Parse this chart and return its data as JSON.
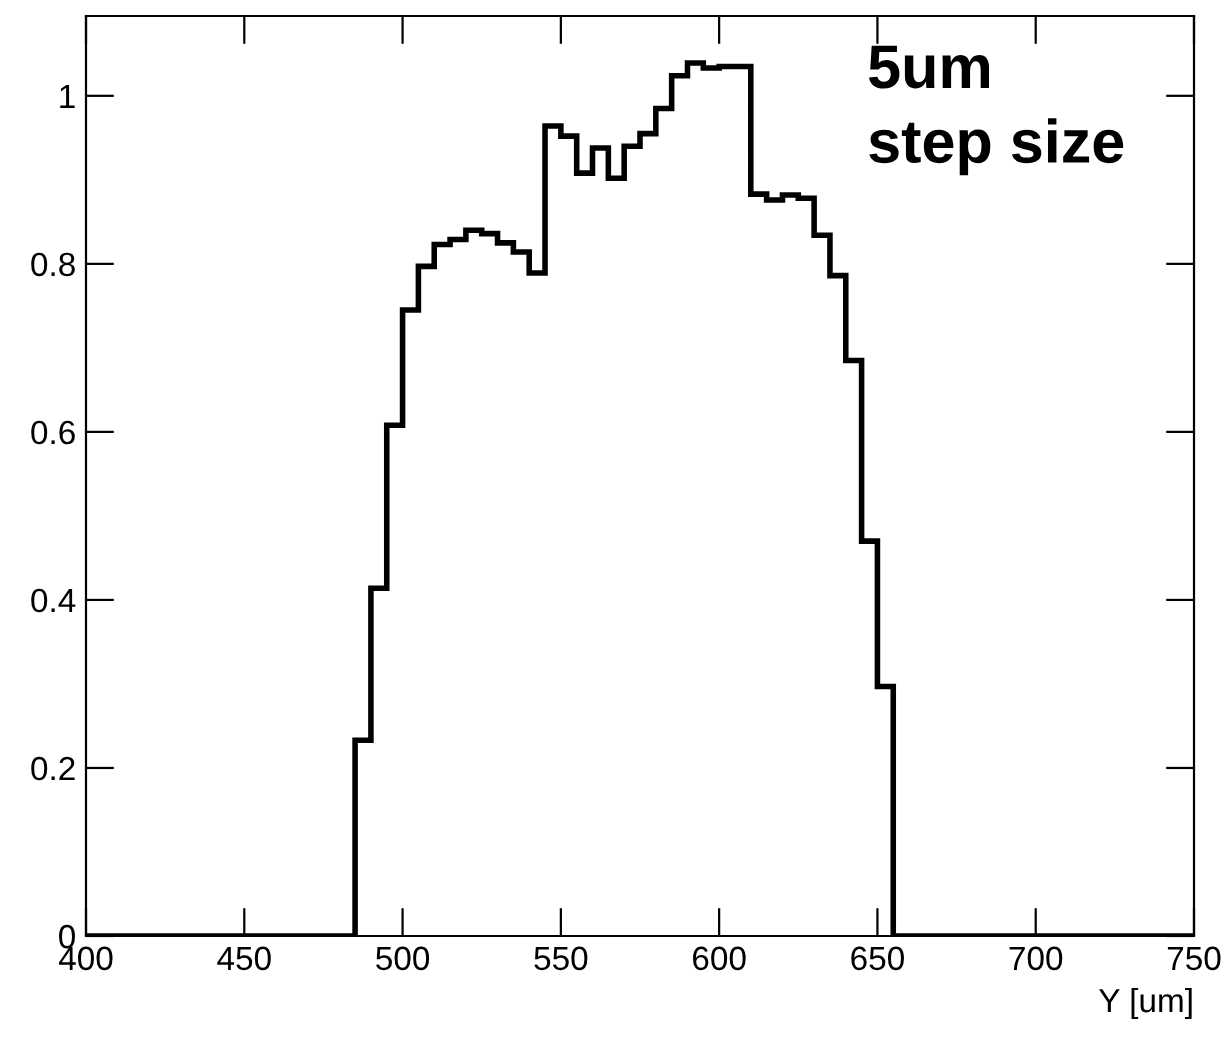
{
  "chart_data": {
    "type": "histogram",
    "xlabel": "Y [um]",
    "annotations": [
      "5um\nstep size"
    ],
    "bins": [
      400,
      405,
      410,
      415,
      420,
      425,
      430,
      435,
      440,
      445,
      450,
      455,
      460,
      465,
      470,
      475,
      480,
      485,
      490,
      495,
      500,
      505,
      510,
      515,
      520,
      525,
      530,
      535,
      540,
      545,
      550,
      555,
      560,
      565,
      570,
      575,
      580,
      585,
      590,
      595,
      600,
      605,
      610,
      615,
      620,
      625,
      630,
      635,
      640,
      645,
      650,
      655,
      660,
      665,
      670,
      675,
      680,
      685,
      690,
      695,
      700,
      705,
      710,
      715,
      720,
      725,
      730,
      735,
      740,
      745,
      750
    ],
    "values": [
      0,
      0,
      0,
      0,
      0,
      0,
      0,
      0,
      0,
      0,
      0,
      0,
      0,
      0,
      0,
      0,
      0,
      0.233,
      0.414,
      0.608,
      0.745,
      0.797,
      0.823,
      0.829,
      0.84,
      0.836,
      0.825,
      0.814,
      0.789,
      0.964,
      0.952,
      0.908,
      0.938,
      0.902,
      0.94,
      0.955,
      0.985,
      1.024,
      1.039,
      1.033,
      1.035,
      1.035,
      0.883,
      0.876,
      0.882,
      0.878,
      0.834,
      0.786,
      0.685,
      0.47,
      0.297,
      0,
      0,
      0,
      0,
      0,
      0,
      0,
      0,
      0,
      0,
      0,
      0,
      0,
      0,
      0,
      0,
      0,
      0,
      0
    ],
    "color": "#000000",
    "xlim": [
      400,
      750
    ],
    "ylim": [
      0,
      1.095
    ],
    "xticks": [
      400,
      450,
      500,
      550,
      600,
      650,
      700,
      750
    ],
    "yticks": [
      0,
      0.2,
      0.4,
      0.6,
      0.8,
      1
    ],
    "grid": false
  }
}
